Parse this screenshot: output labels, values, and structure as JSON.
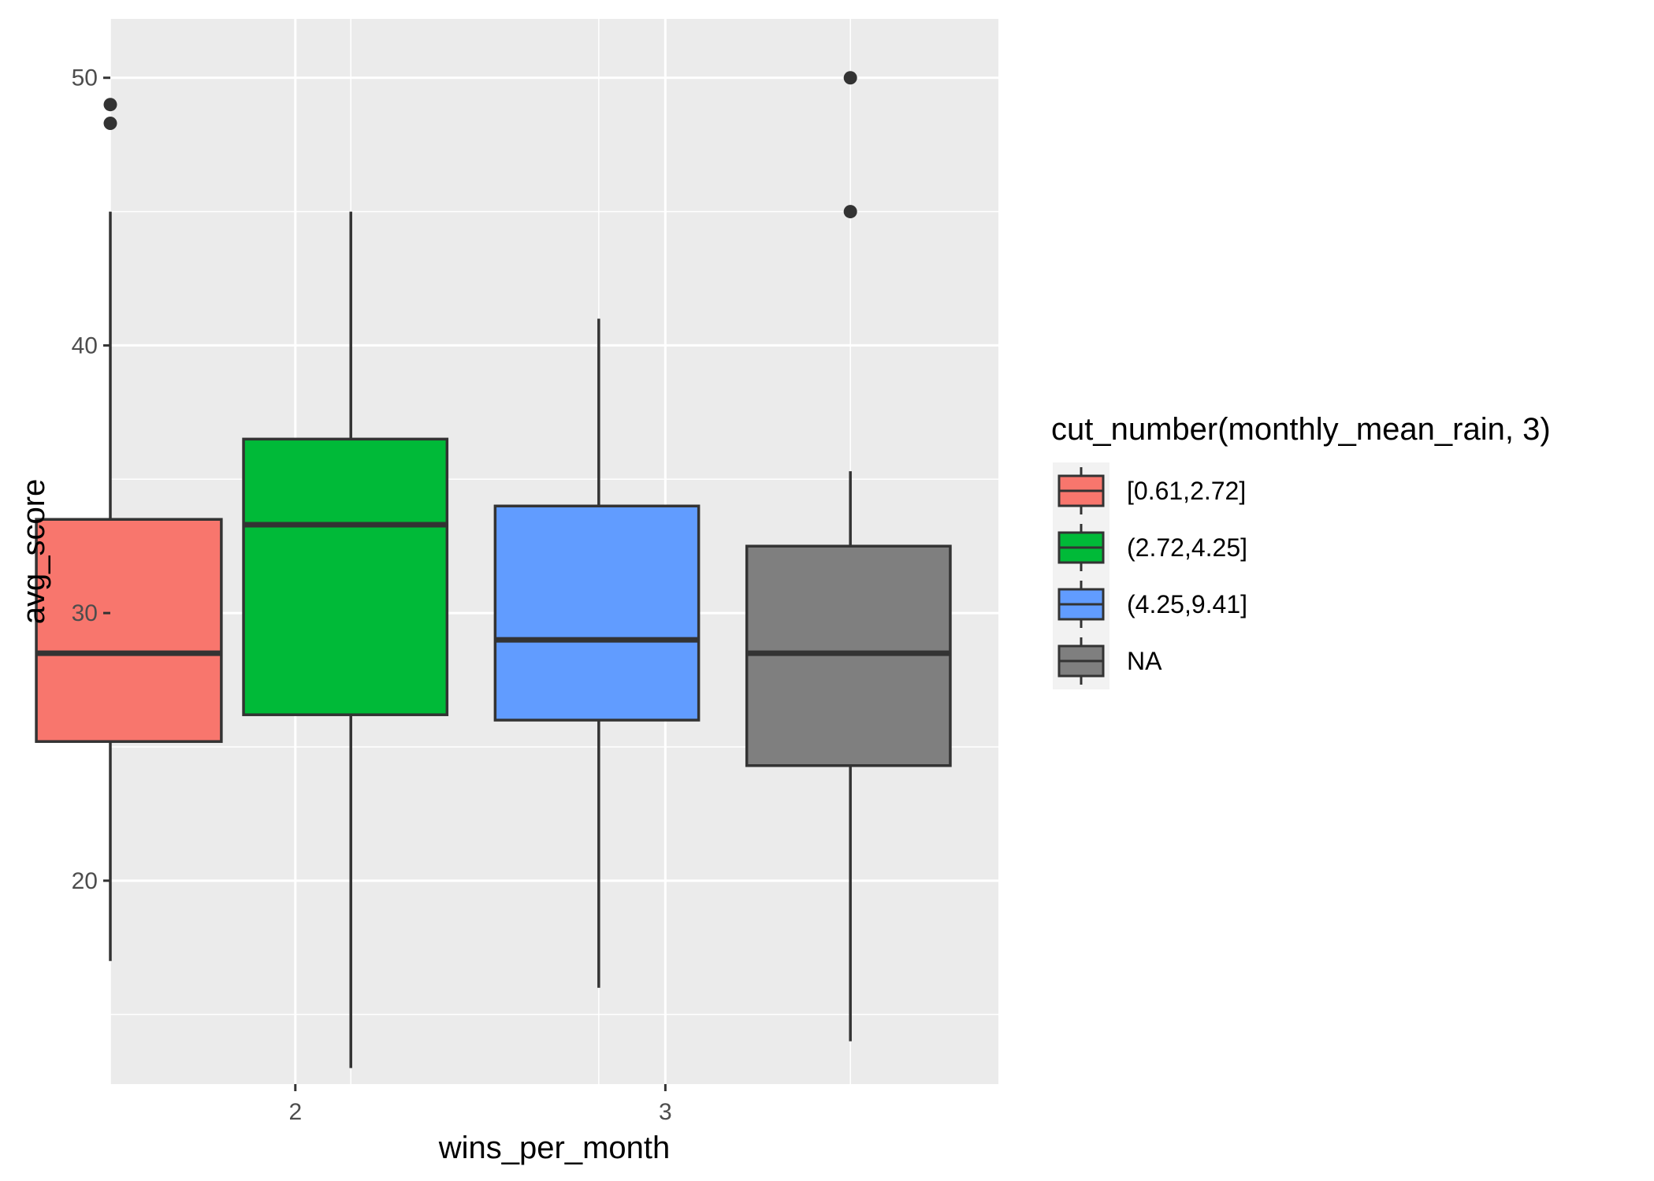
{
  "chart_data": {
    "type": "boxplot",
    "xlabel": "wins_per_month",
    "ylabel": "avg_score",
    "xlim": [
      1.5,
      3.9
    ],
    "ylim": [
      12.4,
      52.2
    ],
    "x_ticks": [
      2,
      3
    ],
    "y_ticks": [
      20,
      30,
      40,
      50
    ],
    "y_minor": [
      15,
      25,
      35,
      45
    ],
    "legend_title": "cut_number(monthly_mean_rain, 3)",
    "legend_position": "right",
    "grid": true,
    "colors": {
      "panel": "#ebebeb",
      "grid": "#ffffff",
      "outline": "#333333",
      "tick_text": "#4d4d4d",
      "legend_key_bg": "#f2f2f2"
    },
    "series": [
      {
        "name": "[0.61,2.72]",
        "color": "#F8766D",
        "x": 1.5,
        "box_left": 1.3,
        "box_right": 1.8,
        "whisker_low": 17,
        "q1": 25.2,
        "median": 28.5,
        "q3": 33.5,
        "whisker_high": 45,
        "outliers": [
          48.3,
          49.0
        ]
      },
      {
        "name": "(2.72,4.25]",
        "color": "#00BA38",
        "x": 2.15,
        "box_left": 1.86,
        "box_right": 2.41,
        "whisker_low": 13,
        "q1": 26.2,
        "median": 33.3,
        "q3": 36.5,
        "whisker_high": 45,
        "outliers": []
      },
      {
        "name": "(4.25,9.41]",
        "color": "#619CFF",
        "x": 2.82,
        "box_left": 2.54,
        "box_right": 3.09,
        "whisker_low": 16,
        "q1": 26.0,
        "median": 29.0,
        "q3": 34.0,
        "whisker_high": 41,
        "outliers": []
      },
      {
        "name": "NA",
        "color": "#7F7F7F",
        "x": 3.5,
        "box_left": 3.22,
        "box_right": 3.77,
        "whisker_low": 14,
        "q1": 24.3,
        "median": 28.5,
        "q3": 32.5,
        "whisker_high": 35.3,
        "outliers": [
          45.0,
          50.0
        ]
      }
    ]
  }
}
